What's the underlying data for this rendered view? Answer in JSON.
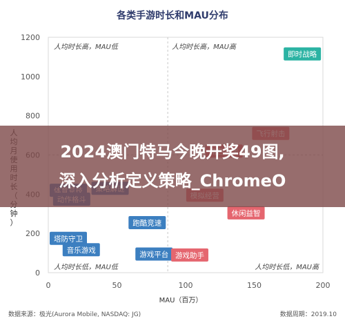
{
  "chart_data": {
    "type": "scatter",
    "title": "各类手游时长和MAU分布",
    "xlabel": "MAU（百万）",
    "ylabel": "人均月使用时长（分钟）",
    "xlim": [
      0,
      200
    ],
    "ylim": [
      0,
      1200
    ],
    "xticks": [
      "0",
      "50",
      "100",
      "150",
      "200"
    ],
    "yticks": [
      "0",
      "200",
      "400",
      "600",
      "800",
      "1000",
      "1200"
    ],
    "divider_x": 87,
    "divider_y": 600,
    "quadrants": [
      {
        "text": "人均时长高，MAU低",
        "position": "top-left"
      },
      {
        "text": "人均时长高，MAU高",
        "position": "top-right"
      },
      {
        "text": "人均时长低，MAU低",
        "position": "bottom-left"
      },
      {
        "text": "人均时长低，MAU高",
        "position": "bottom-right"
      }
    ],
    "points": [
      {
        "label": "即时战略",
        "x": 185,
        "y": 1115,
        "color": "#2bb3a3"
      },
      {
        "label": "体育竞技",
        "x": 8,
        "y": 420,
        "color": "#3c7fc0"
      },
      {
        "label": "动作格斗",
        "x": 17,
        "y": 375,
        "color": "#3c7fc0"
      },
      {
        "label": "策略解谜",
        "x": 45,
        "y": 430,
        "color": "#3c7fc0"
      },
      {
        "label": "跑酷竞速",
        "x": 72,
        "y": 255,
        "color": "#3c7fc0"
      },
      {
        "label": "塔防守卫",
        "x": 14,
        "y": 175,
        "color": "#3c7fc0"
      },
      {
        "label": "音乐游戏",
        "x": 24,
        "y": 117,
        "color": "#3c7fc0"
      },
      {
        "label": "游戏平台",
        "x": 77,
        "y": 95,
        "color": "#3c7fc0"
      },
      {
        "label": "游戏助手",
        "x": 103,
        "y": 90,
        "color": "#e5666f"
      },
      {
        "label": "模拟经营",
        "x": 114,
        "y": 395,
        "color": "#e5666f"
      },
      {
        "label": "休闲益智",
        "x": 144,
        "y": 305,
        "color": "#e5666f"
      },
      {
        "label": "飞行射击",
        "x": 162,
        "y": 710,
        "color": "#e5666f"
      },
      {
        "label": "角色扮演",
        "x": 128,
        "y": 620,
        "color": "#e5666f"
      }
    ]
  },
  "banner": {
    "line1": "2024澳门特马今晚开奖49图,",
    "line2": "深入分析定义策略_ChromeO"
  },
  "footer": {
    "source": "数据来源：极光(Aurora Mobile, NASDAQ: JG)",
    "period": "数据周期：2019.10"
  }
}
